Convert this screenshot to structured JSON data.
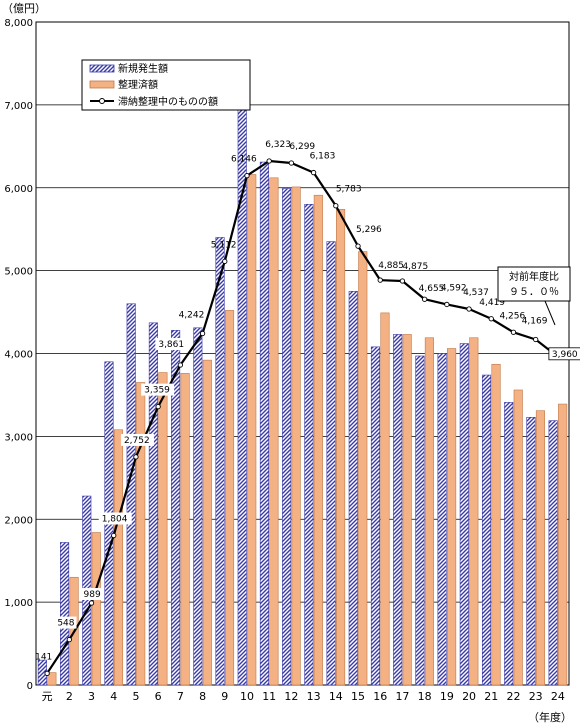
{
  "chart_data": {
    "type": "bar",
    "unit_label": "（億円）",
    "x_axis_label": "（年度）",
    "categories": [
      "元",
      "2",
      "3",
      "4",
      "5",
      "6",
      "7",
      "8",
      "9",
      "10",
      "11",
      "12",
      "13",
      "14",
      "15",
      "16",
      "17",
      "18",
      "19",
      "20",
      "21",
      "22",
      "23",
      "24"
    ],
    "ylim": [
      0,
      8000
    ],
    "yticks": [
      0,
      1000,
      2000,
      3000,
      4000,
      5000,
      6000,
      7000,
      8000
    ],
    "ytick_labels": [
      "0",
      "1,000",
      "2,000",
      "3,000",
      "4,000",
      "5,000",
      "6,000",
      "7,000",
      "8,000"
    ],
    "grid": true,
    "legend_position": "top-left",
    "series": [
      {
        "name": "新規発生額",
        "kind": "bar",
        "color": "#3a3aa8",
        "values": [
          300,
          1720,
          2280,
          3900,
          4600,
          4370,
          4280,
          4310,
          5400,
          7260,
          6310,
          5990,
          5800,
          5350,
          4750,
          4080,
          4230,
          3970,
          4000,
          4120,
          3740,
          3410,
          3230,
          3190
        ]
      },
      {
        "name": "整理済額",
        "kind": "bar",
        "color": "#f4b183",
        "values": [
          150,
          1300,
          1840,
          3080,
          3650,
          3770,
          3760,
          3920,
          4520,
          6160,
          6120,
          6010,
          5910,
          5740,
          5230,
          4490,
          4230,
          4190,
          4060,
          4190,
          3870,
          3560,
          3310,
          3390
        ]
      },
      {
        "name": "滞納整理中のものの額",
        "kind": "line",
        "color": "#000000",
        "values": [
          141,
          548,
          989,
          1804,
          2752,
          3359,
          3861,
          4242,
          5112,
          6146,
          6323,
          6299,
          6183,
          5783,
          5296,
          4885,
          4875,
          4655,
          4592,
          4537,
          4419,
          4256,
          4169,
          3960
        ],
        "labels": [
          "141",
          "548",
          "989",
          "1,804",
          "2,752",
          "3,359",
          "3,861",
          "4,242",
          "5,112",
          "6,146",
          "6,323",
          "6,299",
          "6,183",
          "5,783",
          "5,296",
          "4,885",
          "4,875",
          "4,655",
          "4,592",
          "4,537",
          "4,419",
          "4,256",
          "4,169",
          "3,960"
        ]
      }
    ],
    "callout": {
      "line1": "対前年度比",
      "line2": "９５．０％"
    }
  }
}
